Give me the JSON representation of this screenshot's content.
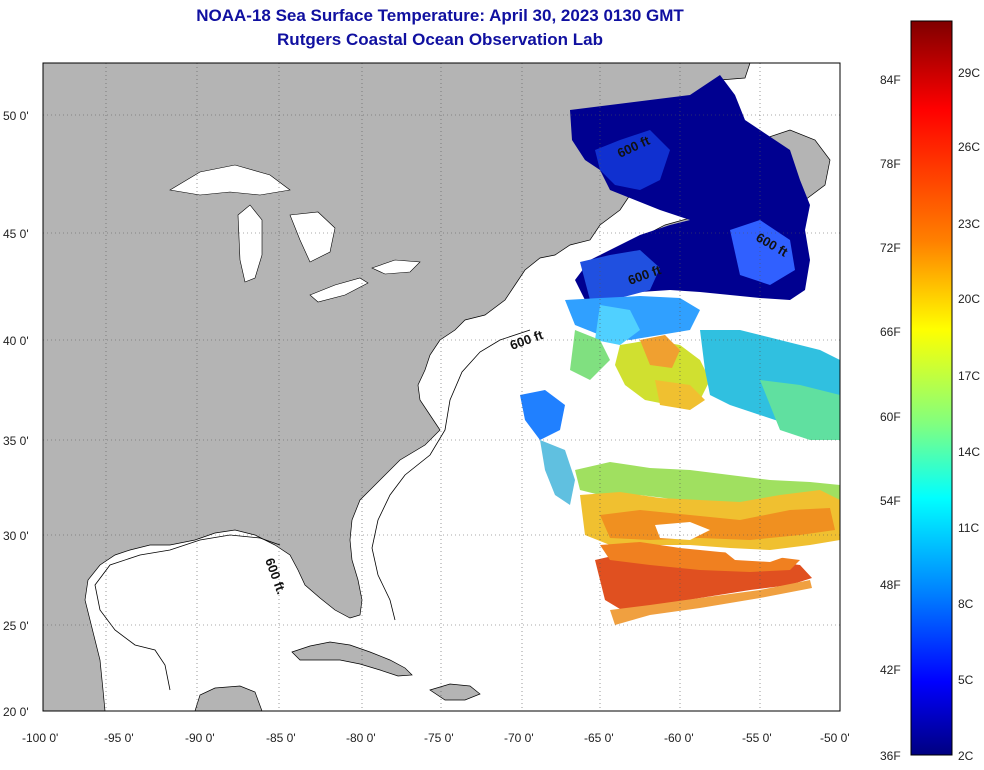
{
  "header": {
    "title": "NOAA-18 Sea Surface Temperature:  April 30, 2023 0130 GMT",
    "subtitle": "Rutgers Coastal Ocean Observation Lab"
  },
  "map": {
    "lon_ticks": [
      "-100 0'",
      "-95 0'",
      "-90 0'",
      "-85 0'",
      "-80 0'",
      "-75 0'",
      "-70 0'",
      "-65 0'",
      "-60 0'",
      "-55 0'",
      "-50 0'"
    ],
    "lat_ticks": [
      "50 0'",
      "45 0'",
      "40 0'",
      "35 0'",
      "30 0'",
      "25 0'",
      "20 0'"
    ],
    "isobath_label": "600 ft",
    "isobath_label_alt": "600 ft.",
    "colors": {
      "land": "#b4b4b4",
      "ocean": "#ffffff",
      "grid": "#666666"
    }
  },
  "colorbar": {
    "fahrenheit": [
      "84F",
      "78F",
      "72F",
      "66F",
      "60F",
      "54F",
      "48F",
      "42F",
      "36F"
    ],
    "celsius": [
      "29C",
      "26C",
      "23C",
      "20C",
      "17C",
      "14C",
      "11C",
      "8C",
      "5C",
      "2C"
    ],
    "gradient": [
      "#7f0000",
      "#ff0000",
      "#ff8000",
      "#ffff00",
      "#80ff80",
      "#00ffff",
      "#0080ff",
      "#0000ff",
      "#000080"
    ]
  }
}
